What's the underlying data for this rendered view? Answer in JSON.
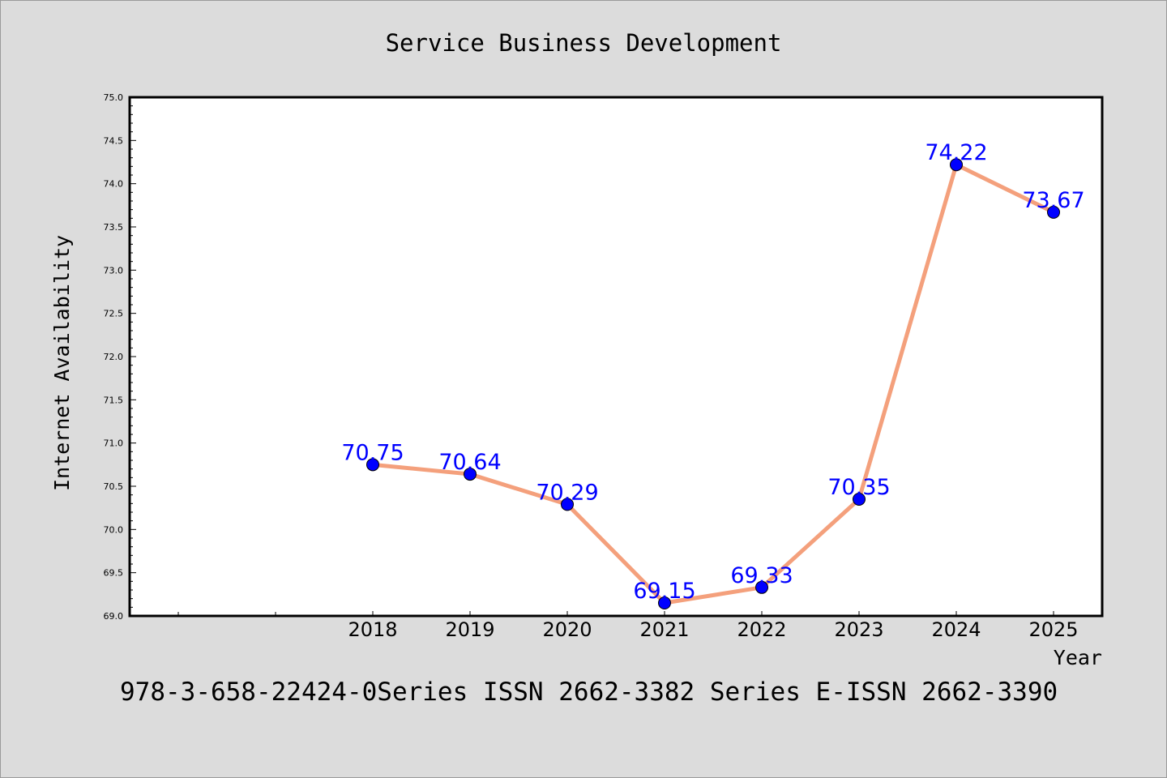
{
  "chart_data": {
    "type": "line",
    "title": "Service Business Development",
    "xlabel": "Year",
    "ylabel": "Internet Availability",
    "footer": "978-3-658-22424-0Series ISSN 2662-3382 Series E-ISSN 2662-3390",
    "x": [
      "2018",
      "2019",
      "2020",
      "2021",
      "2022",
      "2023",
      "2024",
      "2025"
    ],
    "series": [
      {
        "values": [
          70.75,
          70.64,
          70.29,
          69.15,
          69.33,
          70.35,
          74.22,
          73.67
        ],
        "data_labels": [
          "70.75",
          "70.64",
          "70.29",
          "69.15",
          "69.33",
          "70.35",
          "74.22",
          "73.67"
        ]
      }
    ],
    "ylim": [
      69.0,
      75.0
    ],
    "yticks": [
      "69.0",
      "69.5",
      "70.0",
      "70.5",
      "71.0",
      "71.5",
      "72.0",
      "72.5",
      "73.0",
      "73.5",
      "74.0",
      "74.5",
      "75.0"
    ],
    "grid": false,
    "legend": "none",
    "colors": {
      "background": "#dcdcdc",
      "plot_background": "#ffffff",
      "line": "#f4a07c",
      "marker": "#0000ff",
      "data_label": "#0000ff",
      "text": "#000000"
    }
  }
}
